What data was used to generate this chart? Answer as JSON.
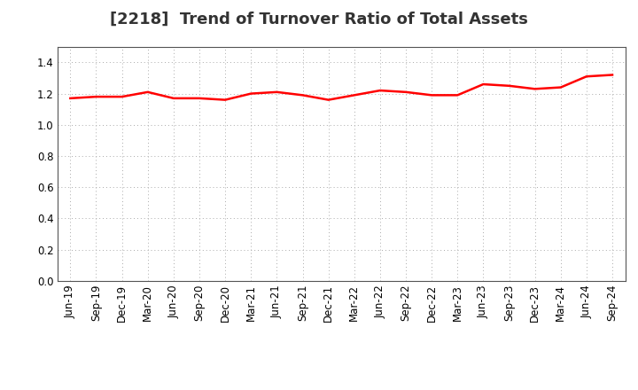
{
  "title": "[2218]  Trend of Turnover Ratio of Total Assets",
  "x_labels": [
    "Jun-19",
    "Sep-19",
    "Dec-19",
    "Mar-20",
    "Jun-20",
    "Sep-20",
    "Dec-20",
    "Mar-21",
    "Jun-21",
    "Sep-21",
    "Dec-21",
    "Mar-22",
    "Jun-22",
    "Sep-22",
    "Dec-22",
    "Mar-23",
    "Jun-23",
    "Sep-23",
    "Dec-23",
    "Mar-24",
    "Jun-24",
    "Sep-24"
  ],
  "y_values": [
    1.17,
    1.18,
    1.18,
    1.21,
    1.17,
    1.17,
    1.16,
    1.2,
    1.21,
    1.19,
    1.16,
    1.19,
    1.22,
    1.21,
    1.19,
    1.19,
    1.26,
    1.25,
    1.23,
    1.24,
    1.31,
    1.32
  ],
  "ylim": [
    0.0,
    1.5
  ],
  "yticks": [
    0.0,
    0.2,
    0.4,
    0.6,
    0.8,
    1.0,
    1.2,
    1.4
  ],
  "line_color": "#FF0000",
  "line_width": 1.8,
  "bg_color": "#FFFFFF",
  "grid_color": "#AAAAAA",
  "title_fontsize": 13,
  "tick_fontsize": 8.5
}
